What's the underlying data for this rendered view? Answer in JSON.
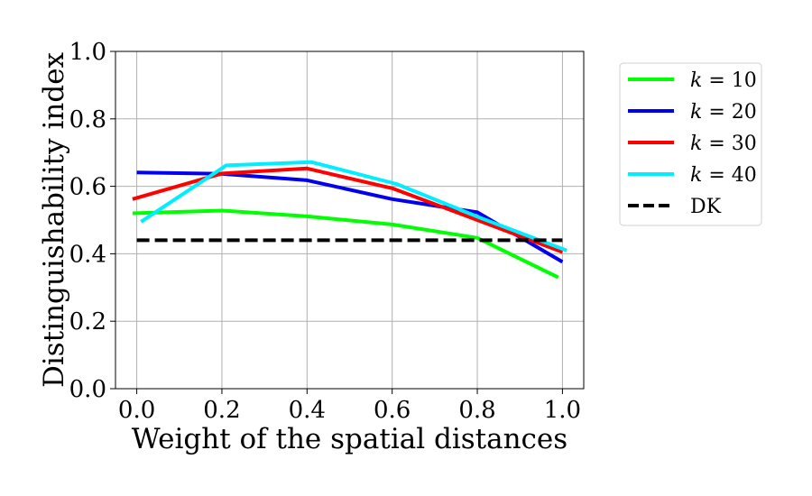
{
  "chart_data": {
    "type": "line",
    "xlabel": "Weight of the spatial distances",
    "ylabel": "Distinguishability index",
    "xlim": [
      -0.05,
      1.05
    ],
    "ylim": [
      0.0,
      1.0
    ],
    "xticks": [
      0.0,
      0.2,
      0.4,
      0.6,
      0.8,
      1.0
    ],
    "xtick_labels": [
      "0.0",
      "0.2",
      "0.4",
      "0.6",
      "0.8",
      "1.0"
    ],
    "yticks": [
      0.0,
      0.2,
      0.4,
      0.6,
      0.8,
      1.0
    ],
    "ytick_labels": [
      "0.0",
      "0.2",
      "0.4",
      "0.6",
      "0.8",
      "1.0"
    ],
    "grid": true,
    "legend_position": "outside-right",
    "series": [
      {
        "name": "k = 10",
        "legend_var": "k",
        "legend_rest": " = 10",
        "color": "#00ff00",
        "dashed": false,
        "x": [
          -0.01,
          0.2,
          0.4,
          0.6,
          0.8,
          0.99
        ],
        "y": [
          0.52,
          0.528,
          0.511,
          0.487,
          0.447,
          0.33
        ]
      },
      {
        "name": "k = 20",
        "legend_var": "k",
        "legend_rest": " = 20",
        "color": "#0000ee",
        "dashed": false,
        "x": [
          0.0,
          0.2,
          0.4,
          0.6,
          0.8,
          1.0
        ],
        "y": [
          0.641,
          0.637,
          0.618,
          0.562,
          0.523,
          0.376
        ]
      },
      {
        "name": "k = 30",
        "legend_var": "k",
        "legend_rest": " = 30",
        "color": "#ff0000",
        "dashed": false,
        "x": [
          -0.01,
          0.2,
          0.4,
          0.6,
          0.8,
          1.0
        ],
        "y": [
          0.562,
          0.638,
          0.653,
          0.594,
          0.5,
          0.405
        ]
      },
      {
        "name": "k = 40",
        "legend_var": "k",
        "legend_rest": " = 40",
        "color": "#00eeff",
        "dashed": false,
        "x": [
          0.01,
          0.21,
          0.41,
          0.61,
          0.81,
          1.01
        ],
        "y": [
          0.495,
          0.662,
          0.672,
          0.607,
          0.505,
          0.41
        ]
      },
      {
        "name": "DK",
        "legend_var": "",
        "legend_rest": "DK",
        "color": "#000000",
        "dashed": true,
        "x": [
          0.0,
          1.0
        ],
        "y": [
          0.44,
          0.44
        ]
      }
    ]
  }
}
